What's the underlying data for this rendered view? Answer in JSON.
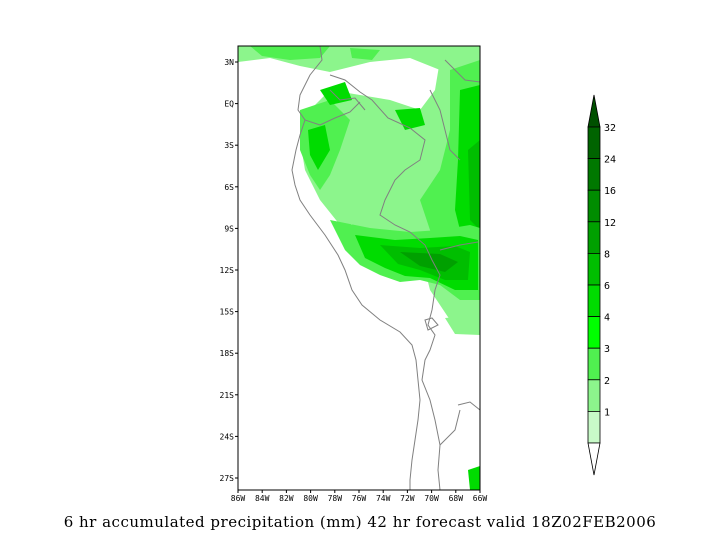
{
  "map": {
    "lat_ticks": [
      "3N",
      "EQ",
      "3S",
      "6S",
      "9S",
      "12S",
      "15S",
      "18S",
      "21S",
      "24S",
      "27S"
    ],
    "lon_ticks": [
      "86W",
      "84W",
      "82W",
      "80W",
      "78W",
      "76W",
      "74W",
      "72W",
      "70W",
      "68W",
      "66W"
    ],
    "extent": {
      "lon_min": -86,
      "lon_max": -66,
      "lat_min": -28,
      "lat_max": 4
    },
    "border_color": "#808080"
  },
  "colorbar": {
    "levels": [
      "32",
      "24",
      "16",
      "12",
      "8",
      "6",
      "4",
      "3",
      "2",
      "1"
    ],
    "colors": [
      "#006400",
      "#007800",
      "#008c00",
      "#00a000",
      "#00be00",
      "#00dc00",
      "#00ff00",
      "#50f050",
      "#8cf58c",
      "#c8fac8"
    ],
    "top_color": "#005000",
    "units": "mm"
  },
  "caption": "6 hr accumulated precipitation (mm) 42 hr forecast valid 18Z02FEB2006"
}
